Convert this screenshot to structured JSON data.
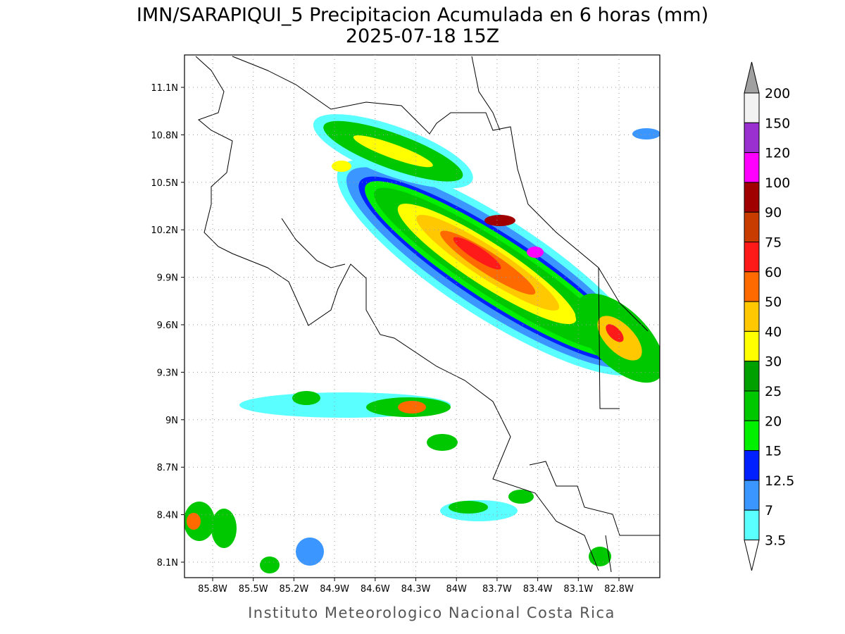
{
  "header": {
    "title": "IMN/SARAPIQUI_5 Precipitacion Acumulada en 6 horas (mm)",
    "subtitle": "2025-07-18 15Z"
  },
  "map": {
    "lat_labels": [
      "11.1N",
      "10.8N",
      "10.5N",
      "10.2N",
      "9.9N",
      "9.6N",
      "9.3N",
      "9N",
      "8.7N",
      "8.4N",
      "8.1N"
    ],
    "lon_labels": [
      "85.8W",
      "85.5W",
      "85.2W",
      "84.9W",
      "84.6W",
      "84.3W",
      "84W",
      "83.7W",
      "83.4W",
      "83.1W",
      "82.8W"
    ]
  },
  "colorbar": {
    "levels": [
      200,
      150,
      120,
      100,
      90,
      75,
      60,
      50,
      40,
      30,
      25,
      20,
      15,
      12.5,
      7,
      3.5
    ],
    "colors": [
      "#f2f2f2",
      "#9b30d0",
      "#ff00ff",
      "#a00000",
      "#c83c00",
      "#ff1a1a",
      "#ff6a00",
      "#ffc800",
      "#ffff00",
      "#00a000",
      "#00c800",
      "#00f000",
      "#0020ff",
      "#3c96ff",
      "#5affff"
    ],
    "over_color": "#a0a0a0",
    "under_color": "#ffffff"
  },
  "footer": "Instituto Meteorologico Nacional Costa Rica"
}
